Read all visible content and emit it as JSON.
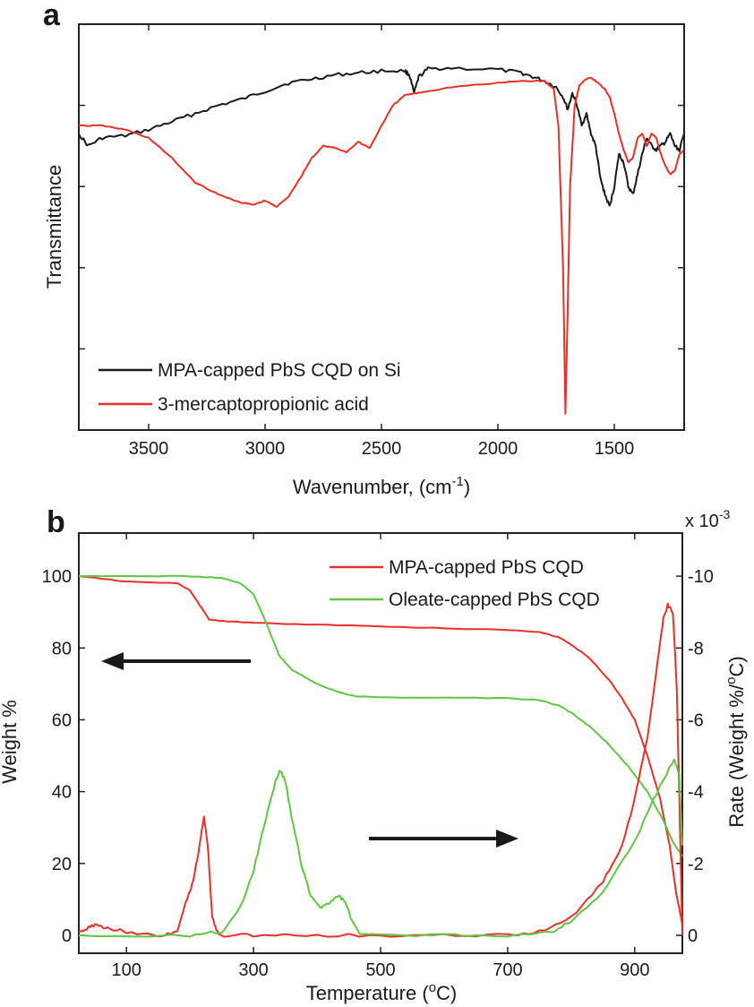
{
  "colors": {
    "black": "#1a1a1a",
    "red": "#e8302a",
    "green": "#62c444"
  },
  "chart_data": [
    {
      "panel": "a",
      "type": "line",
      "xlabel": "Wavenumber, (cm",
      "xlabel_sup": "-1",
      "xlabel_end": ")",
      "ylabel": "Transmittance",
      "xlim": [
        3800,
        1200
      ],
      "ylim": [
        0,
        1
      ],
      "x_ticks": [
        3500,
        3000,
        2500,
        2000,
        1500
      ],
      "y_ticks": [
        0.2,
        0.4,
        0.6,
        0.8,
        1.0
      ],
      "legend_position": "bottom-left",
      "series": [
        {
          "name": "MPA-capped PbS CQD on Si",
          "color": "black",
          "points": [
            [
              3800,
              0.73
            ],
            [
              3760,
              0.7
            ],
            [
              3700,
              0.72
            ],
            [
              3600,
              0.725
            ],
            [
              3500,
              0.74
            ],
            [
              3400,
              0.76
            ],
            [
              3300,
              0.78
            ],
            [
              3200,
              0.8
            ],
            [
              3100,
              0.815
            ],
            [
              3000,
              0.835
            ],
            [
              2900,
              0.855
            ],
            [
              2800,
              0.865
            ],
            [
              2700,
              0.875
            ],
            [
              2600,
              0.88
            ],
            [
              2500,
              0.885
            ],
            [
              2400,
              0.885
            ],
            [
              2380,
              0.875
            ],
            [
              2360,
              0.83
            ],
            [
              2340,
              0.87
            ],
            [
              2300,
              0.89
            ],
            [
              2200,
              0.892
            ],
            [
              2000,
              0.888
            ],
            [
              1900,
              0.88
            ],
            [
              1850,
              0.87
            ],
            [
              1800,
              0.86
            ],
            [
              1750,
              0.845
            ],
            [
              1720,
              0.82
            ],
            [
              1700,
              0.79
            ],
            [
              1680,
              0.83
            ],
            [
              1660,
              0.8
            ],
            [
              1640,
              0.75
            ],
            [
              1620,
              0.78
            ],
            [
              1600,
              0.73
            ],
            [
              1580,
              0.7
            ],
            [
              1560,
              0.62
            ],
            [
              1540,
              0.58
            ],
            [
              1520,
              0.55
            ],
            [
              1500,
              0.6
            ],
            [
              1480,
              0.68
            ],
            [
              1460,
              0.66
            ],
            [
              1440,
              0.6
            ],
            [
              1420,
              0.58
            ],
            [
              1400,
              0.63
            ],
            [
              1380,
              0.68
            ],
            [
              1360,
              0.72
            ],
            [
              1340,
              0.7
            ],
            [
              1320,
              0.69
            ],
            [
              1300,
              0.7
            ],
            [
              1280,
              0.71
            ],
            [
              1260,
              0.73
            ],
            [
              1240,
              0.7
            ],
            [
              1220,
              0.69
            ],
            [
              1200,
              0.73
            ]
          ]
        },
        {
          "name": "3-mercaptopropionic acid",
          "color": "red",
          "points": [
            [
              3800,
              0.75
            ],
            [
              3700,
              0.75
            ],
            [
              3600,
              0.74
            ],
            [
              3500,
              0.72
            ],
            [
              3400,
              0.67
            ],
            [
              3300,
              0.61
            ],
            [
              3200,
              0.58
            ],
            [
              3100,
              0.56
            ],
            [
              3050,
              0.555
            ],
            [
              3000,
              0.565
            ],
            [
              2950,
              0.55
            ],
            [
              2900,
              0.575
            ],
            [
              2850,
              0.62
            ],
            [
              2800,
              0.67
            ],
            [
              2750,
              0.7
            ],
            [
              2700,
              0.695
            ],
            [
              2650,
              0.685
            ],
            [
              2600,
              0.71
            ],
            [
              2550,
              0.695
            ],
            [
              2500,
              0.75
            ],
            [
              2450,
              0.8
            ],
            [
              2400,
              0.825
            ],
            [
              2350,
              0.83
            ],
            [
              2300,
              0.835
            ],
            [
              2200,
              0.845
            ],
            [
              2000,
              0.855
            ],
            [
              1900,
              0.86
            ],
            [
              1800,
              0.86
            ],
            [
              1760,
              0.84
            ],
            [
              1740,
              0.75
            ],
            [
              1720,
              0.4
            ],
            [
              1710,
              0.04
            ],
            [
              1700,
              0.3
            ],
            [
              1690,
              0.6
            ],
            [
              1670,
              0.8
            ],
            [
              1650,
              0.85
            ],
            [
              1620,
              0.865
            ],
            [
              1600,
              0.868
            ],
            [
              1580,
              0.86
            ],
            [
              1560,
              0.85
            ],
            [
              1540,
              0.84
            ],
            [
              1520,
              0.82
            ],
            [
              1500,
              0.78
            ],
            [
              1480,
              0.73
            ],
            [
              1460,
              0.69
            ],
            [
              1440,
              0.66
            ],
            [
              1420,
              0.67
            ],
            [
              1400,
              0.72
            ],
            [
              1380,
              0.73
            ],
            [
              1360,
              0.7
            ],
            [
              1340,
              0.73
            ],
            [
              1320,
              0.72
            ],
            [
              1300,
              0.68
            ],
            [
              1280,
              0.65
            ],
            [
              1260,
              0.63
            ],
            [
              1240,
              0.64
            ],
            [
              1220,
              0.68
            ],
            [
              1200,
              0.69
            ]
          ]
        }
      ]
    },
    {
      "panel": "b",
      "type": "line",
      "xlabel": "Temperature (",
      "xlabel_sup": "o",
      "xlabel_end": "C)",
      "ylabel_left": "Weight %",
      "ylabel_right": "Rate (Weight %/",
      "ylabel_right_sup": "o",
      "ylabel_right_end": "C)",
      "right_axis_multiplier": "x 10",
      "right_axis_multiplier_sup": "-3",
      "xlim": [
        25,
        975
      ],
      "ylim_left": [
        -5,
        112
      ],
      "ylim_right": [
        0.5,
        -11.2
      ],
      "x_ticks": [
        100,
        300,
        500,
        700,
        900
      ],
      "y_ticks_left": [
        0,
        20,
        40,
        60,
        80,
        100
      ],
      "y_ticks_right": [
        0,
        -2,
        -4,
        -6,
        -8,
        -10
      ],
      "legend_position": "top-right",
      "annotations": [
        {
          "type": "arrow",
          "direction": "left",
          "points_to": "left-axis"
        },
        {
          "type": "arrow",
          "direction": "right",
          "points_to": "right-axis"
        }
      ],
      "series": [
        {
          "name": "MPA-capped PbS CQD",
          "color": "red",
          "kind": "weight",
          "axis": "left",
          "points": [
            [
              25,
              100
            ],
            [
              100,
              98.5
            ],
            [
              180,
              98
            ],
            [
              200,
              96
            ],
            [
              215,
              92
            ],
            [
              230,
              88
            ],
            [
              250,
              87.5
            ],
            [
              300,
              87
            ],
            [
              400,
              86.5
            ],
            [
              500,
              86
            ],
            [
              600,
              85.5
            ],
            [
              700,
              85
            ],
            [
              750,
              84.5
            ],
            [
              780,
              83
            ],
            [
              800,
              81
            ],
            [
              830,
              77
            ],
            [
              860,
              71
            ],
            [
              880,
              66
            ],
            [
              900,
              60
            ],
            [
              920,
              50
            ],
            [
              940,
              38
            ],
            [
              955,
              25
            ],
            [
              965,
              12
            ],
            [
              975,
              3
            ]
          ]
        },
        {
          "name": "Oleate-capped PbS CQD",
          "color": "green",
          "kind": "weight",
          "axis": "left",
          "points": [
            [
              25,
              100
            ],
            [
              100,
              100
            ],
            [
              200,
              100
            ],
            [
              250,
              99.5
            ],
            [
              280,
              98
            ],
            [
              300,
              95
            ],
            [
              320,
              87
            ],
            [
              340,
              78
            ],
            [
              360,
              74
            ],
            [
              380,
              72
            ],
            [
              400,
              70
            ],
            [
              430,
              68
            ],
            [
              460,
              66.5
            ],
            [
              500,
              66.3
            ],
            [
              600,
              66.2
            ],
            [
              700,
              66
            ],
            [
              750,
              65.5
            ],
            [
              780,
              64
            ],
            [
              800,
              62
            ],
            [
              830,
              58
            ],
            [
              860,
              53
            ],
            [
              890,
              47
            ],
            [
              920,
              40
            ],
            [
              945,
              32
            ],
            [
              960,
              26
            ],
            [
              975,
              22
            ]
          ]
        },
        {
          "kind": "rate",
          "color": "red",
          "axis": "right",
          "points": [
            [
              25,
              -0.1
            ],
            [
              40,
              -0.2
            ],
            [
              50,
              -0.3
            ],
            [
              70,
              -0.2
            ],
            [
              100,
              -0.1
            ],
            [
              150,
              0
            ],
            [
              180,
              -0.1
            ],
            [
              195,
              -1
            ],
            [
              205,
              -1.5
            ],
            [
              215,
              -2.5
            ],
            [
              222,
              -3.3
            ],
            [
              228,
              -2.5
            ],
            [
              235,
              -0.5
            ],
            [
              245,
              0
            ],
            [
              300,
              0
            ],
            [
              400,
              0
            ],
            [
              500,
              0
            ],
            [
              600,
              0
            ],
            [
              700,
              0
            ],
            [
              750,
              -0.1
            ],
            [
              800,
              -0.5
            ],
            [
              850,
              -1.5
            ],
            [
              880,
              -2.5
            ],
            [
              900,
              -3.8
            ],
            [
              920,
              -5.5
            ],
            [
              935,
              -7.5
            ],
            [
              945,
              -8.8
            ],
            [
              952,
              -9.2
            ],
            [
              960,
              -9
            ],
            [
              966,
              -7
            ],
            [
              970,
              -4
            ],
            [
              975,
              0
            ]
          ]
        },
        {
          "kind": "rate",
          "color": "green",
          "axis": "right",
          "points": [
            [
              25,
              0
            ],
            [
              200,
              0
            ],
            [
              250,
              -0.1
            ],
            [
              280,
              -0.8
            ],
            [
              300,
              -1.8
            ],
            [
              320,
              -3.3
            ],
            [
              335,
              -4.3
            ],
            [
              342,
              -4.6
            ],
            [
              350,
              -4.3
            ],
            [
              360,
              -3.3
            ],
            [
              375,
              -2.0
            ],
            [
              390,
              -1.1
            ],
            [
              405,
              -0.8
            ],
            [
              420,
              -0.9
            ],
            [
              435,
              -1.1
            ],
            [
              445,
              -0.9
            ],
            [
              455,
              -0.4
            ],
            [
              470,
              0
            ],
            [
              600,
              0
            ],
            [
              700,
              0
            ],
            [
              770,
              -0.1
            ],
            [
              800,
              -0.4
            ],
            [
              850,
              -1.2
            ],
            [
              900,
              -2.6
            ],
            [
              930,
              -3.8
            ],
            [
              950,
              -4.5
            ],
            [
              962,
              -4.9
            ],
            [
              970,
              -4.5
            ],
            [
              975,
              -2.5
            ]
          ]
        }
      ]
    }
  ]
}
